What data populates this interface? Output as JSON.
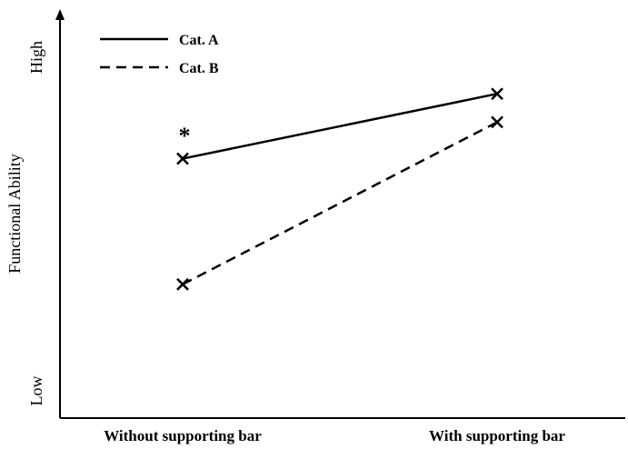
{
  "chart_data": {
    "type": "line",
    "title": "",
    "xlabel": "",
    "ylabel": "Functional Ability",
    "y_high_label": "High",
    "y_low_label": "Low",
    "categories": [
      "Without supporting bar",
      "With supporting bar"
    ],
    "ylim": [
      0,
      10
    ],
    "series": [
      {
        "name": "Cat. A",
        "style": "solid",
        "marker": "x",
        "values": [
          6.4,
          8.0
        ]
      },
      {
        "name": "Cat. B",
        "style": "dashed",
        "marker": "x",
        "values": [
          3.3,
          7.3
        ]
      }
    ],
    "annotations": [
      {
        "text": "*",
        "category": "Without supporting bar",
        "y": 7.6
      }
    ],
    "legend_position": "top-left",
    "grid": false
  }
}
